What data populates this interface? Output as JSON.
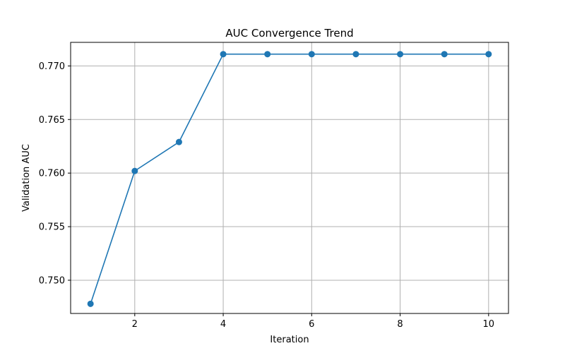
{
  "chart_data": {
    "type": "line",
    "title": "AUC Convergence Trend",
    "xlabel": "Iteration",
    "ylabel": "Validation AUC",
    "x": [
      1,
      2,
      3,
      4,
      5,
      6,
      7,
      8,
      9,
      10
    ],
    "series": [
      {
        "values": [
          0.7478,
          0.7602,
          0.7629,
          0.7711,
          0.7711,
          0.7711,
          0.7711,
          0.7711,
          0.7711,
          0.7711
        ],
        "color": "#1f77b4",
        "marker": "circle"
      }
    ],
    "xlim": [
      0.55,
      10.45
    ],
    "ylim": [
      0.7469,
      0.7722
    ],
    "xticks": [
      2,
      4,
      6,
      8,
      10
    ],
    "yticks": [
      0.75,
      0.755,
      0.76,
      0.765,
      0.77
    ],
    "xtick_labels": [
      "2",
      "4",
      "6",
      "8",
      "10"
    ],
    "ytick_labels": [
      "0.750",
      "0.755",
      "0.760",
      "0.765",
      "0.770"
    ],
    "grid": true,
    "legend": false
  }
}
